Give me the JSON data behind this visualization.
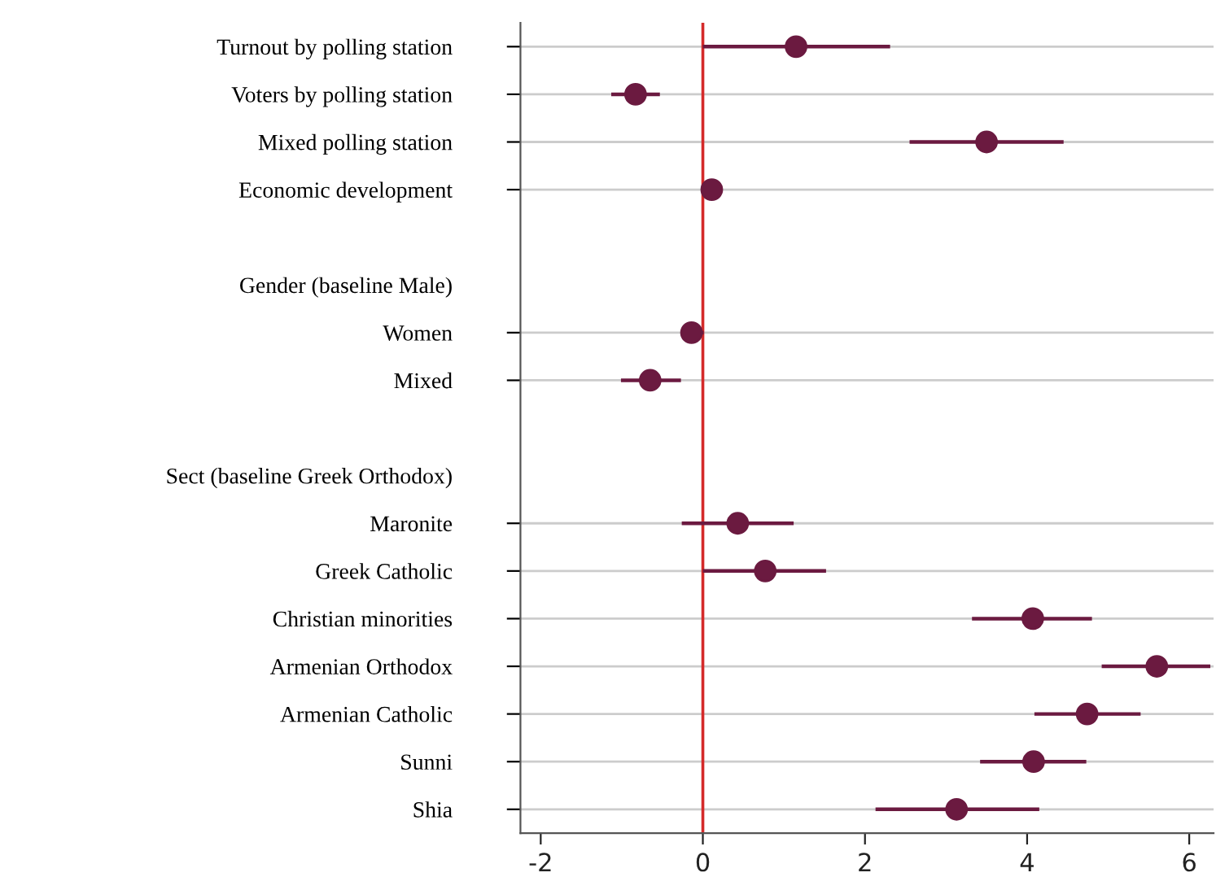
{
  "chart_data": {
    "type": "scatter",
    "orientation": "horizontal",
    "marker": "circle",
    "grid": "y",
    "categories": [
      "Turnout by polling station",
      "Voters by polling station",
      "Mixed polling station",
      "Economic development",
      null,
      "Gender (baseline Male)",
      "Women",
      "Mixed",
      null,
      "Sect (baseline Greek Orthodox)",
      "Maronite",
      "Greek Catholic",
      "Christian minorities",
      "Armenian Orthodox",
      "Armenian Catholic",
      "Sunni",
      "Shia"
    ],
    "values": [
      1.15,
      -0.83,
      3.5,
      0.11,
      null,
      null,
      -0.14,
      -0.65,
      null,
      null,
      0.43,
      0.77,
      4.07,
      5.6,
      4.74,
      4.08,
      3.13
    ],
    "errors": [
      [
        0,
        2.31
      ],
      [
        -1.13,
        -0.53
      ],
      [
        2.55,
        4.45
      ],
      null,
      null,
      null,
      [
        -0.27,
        0.01
      ],
      [
        -1.01,
        -0.27
      ],
      null,
      null,
      [
        -0.26,
        1.12
      ],
      [
        0,
        1.52
      ],
      [
        3.32,
        4.8
      ],
      [
        4.92,
        6.26
      ],
      [
        4.09,
        5.4
      ],
      [
        3.42,
        4.73
      ],
      [
        2.13,
        4.15
      ]
    ],
    "color": "#6b1a40",
    "xlim": [
      -2.25,
      6.3
    ],
    "xticks": [
      -2,
      0,
      2,
      4,
      6
    ],
    "ref_lines": [
      {
        "axis": "x",
        "value": 0,
        "label": null,
        "color": "#d42a2a"
      }
    ]
  }
}
